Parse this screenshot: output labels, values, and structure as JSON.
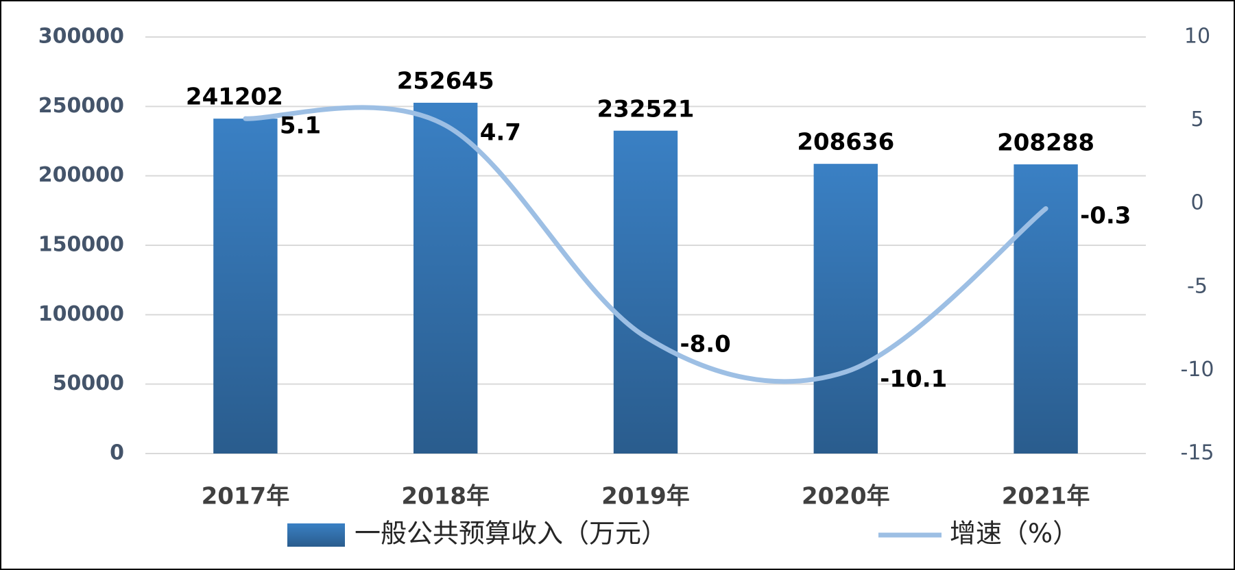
{
  "chart_data": {
    "type": "bar-line",
    "categories": [
      "2017年",
      "2018年",
      "2019年",
      "2020年",
      "2021年"
    ],
    "series": [
      {
        "name": "一般公共预算收入（万元）",
        "type": "bar",
        "color": "#3a80c4",
        "values": [
          241202,
          252645,
          232521,
          208636,
          208288
        ]
      },
      {
        "name": "增速（%）",
        "type": "line",
        "axis": "y2",
        "color": "#9dbfe4",
        "values": [
          5.1,
          4.7,
          -8,
          -10.1,
          -0.3
        ],
        "value_labels": [
          "5.1",
          "4.7",
          "-8.0",
          "-10.1",
          "-0.3"
        ]
      }
    ],
    "ylim": [
      0,
      300000
    ],
    "yticks": [
      0,
      50000,
      100000,
      150000,
      200000,
      250000,
      300000
    ],
    "y2lim": [
      -15,
      10
    ],
    "y2ticks": [
      -15,
      -10,
      -5,
      0,
      5,
      10
    ],
    "grid": true
  }
}
